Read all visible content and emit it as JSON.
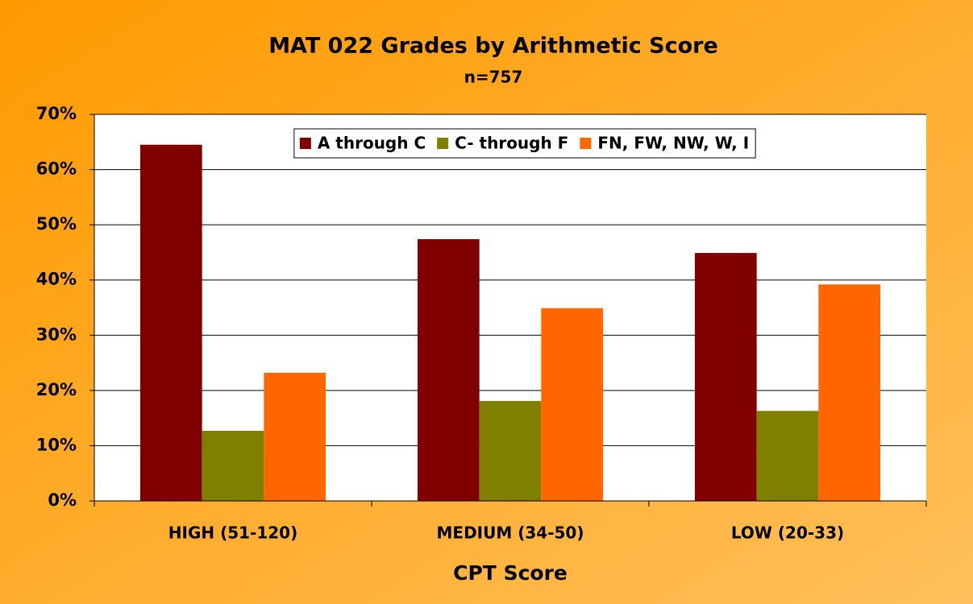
{
  "chart_data": {
    "type": "bar",
    "title": "MAT 022 Grades by Arithmetic Score",
    "subtitle": "n=757",
    "x_label": "CPT Score",
    "categories": [
      "HIGH (51-120)",
      "MEDIUM (34-50)",
      "LOW (20-33)"
    ],
    "series": [
      {
        "name": "A through C",
        "color": "#800000",
        "values": [
          64.5,
          47.4,
          44.9
        ]
      },
      {
        "name": "C- through F",
        "color": "#808000",
        "values": [
          12.7,
          18.1,
          16.3
        ]
      },
      {
        "name": "FN, FW, NW, W, I",
        "color": "#ff6600",
        "values": [
          23.2,
          34.9,
          39.2
        ]
      }
    ],
    "ylim": [
      0,
      70
    ],
    "yticks": [
      {
        "value": 0,
        "label": "0%"
      },
      {
        "value": 10,
        "label": "10%"
      },
      {
        "value": 20,
        "label": "20%"
      },
      {
        "value": 30,
        "label": "30%"
      },
      {
        "value": 40,
        "label": "40%"
      },
      {
        "value": 50,
        "label": "50%"
      },
      {
        "value": 60,
        "label": "60%"
      },
      {
        "value": 70,
        "label": "70%"
      }
    ],
    "grid": true,
    "legend": "top"
  }
}
